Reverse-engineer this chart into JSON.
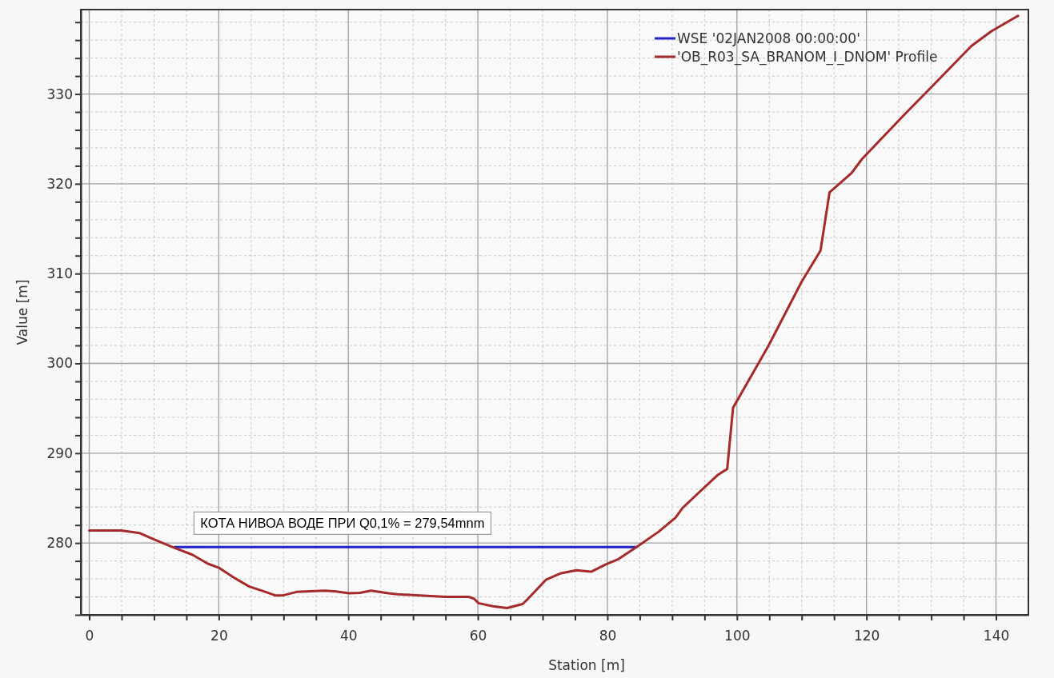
{
  "chart_data": {
    "type": "line",
    "xlabel": "Station [m]",
    "ylabel": "Value [m]",
    "xlim": [
      -1.3,
      145
    ],
    "ylim": [
      272,
      339.4
    ],
    "xticks": [
      0,
      {
        "value": 5,
        "label": null
      },
      20,
      {
        "value": 10,
        "label": null
      },
      {
        "value": 15,
        "label": null
      },
      {
        "value": 25,
        "label": null
      },
      {
        "value": 30,
        "label": null
      },
      {
        "value": 35,
        "label": null
      },
      40,
      {
        "value": 45,
        "label": null
      },
      {
        "value": 50,
        "label": null
      },
      {
        "value": 55,
        "label": null
      },
      60,
      {
        "value": 65,
        "label": null
      },
      {
        "value": 70,
        "label": null
      },
      {
        "value": 75,
        "label": null
      },
      80,
      {
        "value": 85,
        "label": null
      },
      {
        "value": 90,
        "label": null
      },
      {
        "value": 95,
        "label": null
      },
      100,
      {
        "value": 105,
        "label": null
      },
      {
        "value": 110,
        "label": null
      },
      {
        "value": 115,
        "label": null
      },
      120,
      {
        "value": 125,
        "label": null
      },
      {
        "value": 130,
        "label": null
      },
      {
        "value": 135,
        "label": null
      },
      140
    ],
    "yticks": [
      {
        "value": 272,
        "label": null
      },
      {
        "value": 274,
        "label": null
      },
      {
        "value": 276,
        "label": null
      },
      {
        "value": 278,
        "label": null
      },
      280,
      {
        "value": 282,
        "label": null
      },
      {
        "value": 284,
        "label": null
      },
      {
        "value": 286,
        "label": null
      },
      {
        "value": 288,
        "label": null
      },
      290,
      {
        "value": 292,
        "label": null
      },
      {
        "value": 294,
        "label": null
      },
      {
        "value": 296,
        "label": null
      },
      {
        "value": 298,
        "label": null
      },
      300,
      {
        "value": 302,
        "label": null
      },
      {
        "value": 304,
        "label": null
      },
      {
        "value": 306,
        "label": null
      },
      {
        "value": 308,
        "label": null
      },
      310,
      {
        "value": 312,
        "label": null
      },
      {
        "value": 314,
        "label": null
      },
      {
        "value": 316,
        "label": null
      },
      {
        "value": 318,
        "label": null
      },
      320,
      {
        "value": 322,
        "label": null
      },
      {
        "value": 324,
        "label": null
      },
      {
        "value": 326,
        "label": null
      },
      {
        "value": 328,
        "label": null
      },
      330,
      {
        "value": 332,
        "label": null
      },
      {
        "value": 334,
        "label": null
      },
      {
        "value": 336,
        "label": null
      },
      {
        "value": 338,
        "label": null
      }
    ],
    "grid": true,
    "legend": "top right",
    "marker": "none",
    "line_style": "solid",
    "annotations": [
      "КОТА НИВОА ВОДЕ ПРИ Q0,1% = 279,54mnm"
    ],
    "series": [
      {
        "name": "WSE '02JAN2008 00:00:00'",
        "color": "#2323c8",
        "x": [
          13.2,
          84.5
        ],
        "values": [
          279.54,
          279.54
        ]
      },
      {
        "name": "'OB_R03_SA_BRANOM_I_DNOM' Profile",
        "color": "#a52a2a",
        "x": [
          0,
          4.9,
          7.8,
          10,
          13.2,
          15.9,
          18.3,
          20,
          22.2,
          24.7,
          26.6,
          28.8,
          29.8,
          32,
          36.4,
          38.1,
          40.1,
          41.8,
          43.5,
          46.2,
          47.6,
          51,
          55,
          58.6,
          59.4,
          60.1,
          62.3,
          64.5,
          66.9,
          67.7,
          70.5,
          72.7,
          75.2,
          77.5,
          79.7,
          81.7,
          84.5,
          87.9,
          90.5,
          91.6,
          94.1,
          97,
          98.5,
          99.4,
          104.9,
          110,
          112.9,
          114.3,
          117.7,
          119.3,
          126.1,
          130.2,
          136.2,
          139.3,
          143.4
        ],
        "values": [
          281.4,
          281.4,
          281.1,
          280.4,
          279.45,
          278.7,
          277.7,
          277.25,
          276.2,
          275.15,
          274.7,
          274.15,
          274.15,
          274.55,
          274.7,
          274.6,
          274.4,
          274.45,
          274.7,
          274.4,
          274.3,
          274.15,
          274,
          274,
          273.8,
          273.3,
          272.95,
          272.75,
          273.2,
          273.75,
          275.9,
          276.6,
          276.97,
          276.8,
          277.6,
          278.2,
          279.55,
          281.25,
          282.8,
          283.9,
          285.6,
          287.55,
          288.25,
          295.05,
          302,
          309.1,
          312.55,
          319.05,
          321.2,
          322.75,
          327.9,
          330.9,
          335.35,
          337,
          338.7
        ]
      }
    ]
  }
}
